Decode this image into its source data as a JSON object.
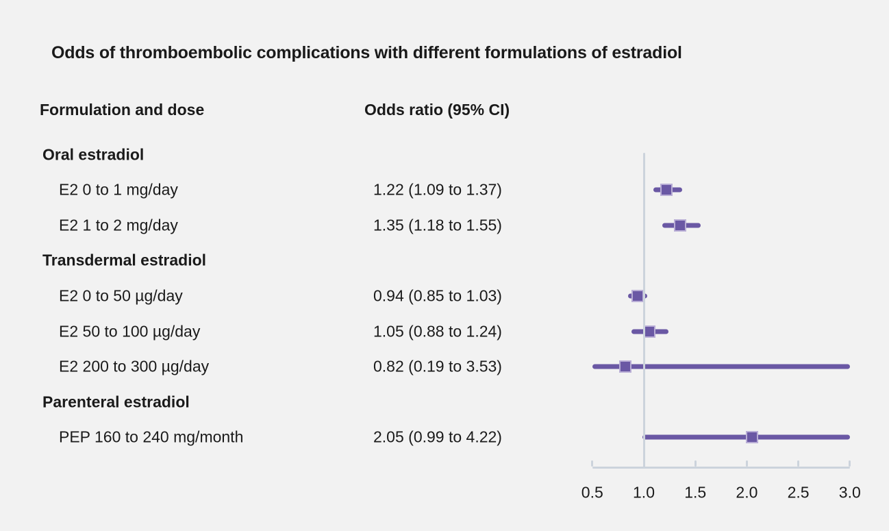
{
  "title": "Odds of thromboembolic complications with different formulations of estradiol",
  "column_headers": {
    "formulation": "Formulation and dose",
    "odds_ratio": "Odds ratio (95% CI)"
  },
  "chart_data": {
    "type": "forest",
    "title": "Odds of thromboembolic complications with different formulations of estradiol",
    "x_axis": {
      "min": 0.5,
      "max": 3.0,
      "tick_values": [
        0.5,
        1.0,
        1.5,
        2.0,
        2.5,
        3.0
      ],
      "tick_labels": [
        "0.5",
        "1.0",
        "1.5",
        "2.0",
        "2.5",
        "3.0"
      ],
      "reference_line": 1.0,
      "grid": false
    },
    "rows": [
      {
        "kind": "group",
        "label": "Oral estradiol"
      },
      {
        "kind": "item",
        "label": "E2 0 to 1 mg/day",
        "or_text": "1.22 (1.09 to 1.37)",
        "estimate": 1.22,
        "ci_low": 1.09,
        "ci_high": 1.37
      },
      {
        "kind": "item",
        "label": "E2 1 to 2 mg/day",
        "or_text": "1.35 (1.18 to 1.55)",
        "estimate": 1.35,
        "ci_low": 1.18,
        "ci_high": 1.55
      },
      {
        "kind": "group",
        "label": "Transdermal estradiol"
      },
      {
        "kind": "item",
        "label": "E2 0 to 50 µg/day",
        "or_text": "0.94 (0.85 to 1.03)",
        "estimate": 0.94,
        "ci_low": 0.85,
        "ci_high": 1.03
      },
      {
        "kind": "item",
        "label": "E2 50 to 100 µg/day",
        "or_text": "1.05 (0.88 to 1.24)",
        "estimate": 1.05,
        "ci_low": 0.88,
        "ci_high": 1.24
      },
      {
        "kind": "item",
        "label": "E2 200 to 300 µg/day",
        "or_text": "0.82 (0.19 to 3.53)",
        "estimate": 0.82,
        "ci_low": 0.19,
        "ci_high": 3.53
      },
      {
        "kind": "group",
        "label": "Parenteral estradiol"
      },
      {
        "kind": "item",
        "label": "PEP 160 to 240 mg/month",
        "or_text": "2.05 (0.99 to 4.22)",
        "estimate": 2.05,
        "ci_low": 0.99,
        "ci_high": 4.22
      }
    ],
    "colors": {
      "background": "#f2f2f2",
      "text": "#1a1a1a",
      "marker_fill": "#6a58a4",
      "marker_border": "#b9aed6",
      "ci_line": "#6a58a4",
      "axis": "#ccd3dc"
    }
  }
}
